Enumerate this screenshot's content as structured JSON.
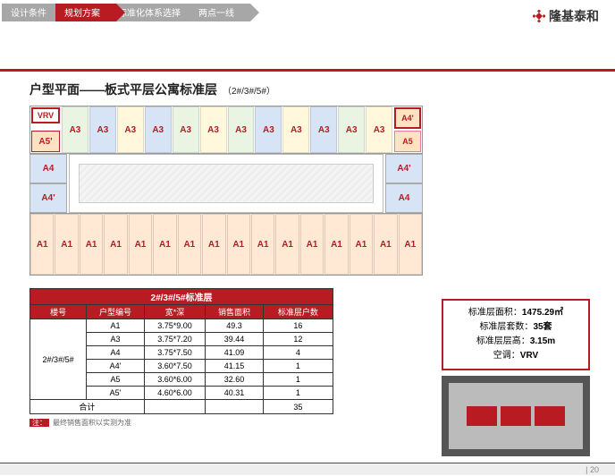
{
  "tabs": [
    "设计条件",
    "规划方案",
    "标准化体系选择",
    "两点一线"
  ],
  "active_tab_index": 1,
  "brand": "隆基泰和",
  "page_num": "20",
  "title_main": "户型平面——板式平层公寓标准层",
  "title_sub": "（2#/3#/5#）",
  "floorplan": {
    "vrv": "VRV",
    "a5l": "A5'",
    "top_units": [
      "A3",
      "A3",
      "A3",
      "A3",
      "A3",
      "A3",
      "A3",
      "A3",
      "A3",
      "A3",
      "A3",
      "A3"
    ],
    "top_colors": [
      "u-green",
      "u-blue",
      "u-yellow",
      "u-blue",
      "u-green",
      "u-yellow",
      "u-green",
      "u-blue",
      "u-yellow",
      "u-blue",
      "u-green",
      "u-yellow"
    ],
    "a4r": "A4'",
    "a5r": "A5",
    "mid_left": [
      "A4",
      "A4'"
    ],
    "mid_right": [
      "A4'",
      "A4"
    ],
    "bottom_units": [
      "A1",
      "A1",
      "A1",
      "A1",
      "A1",
      "A1",
      "A1",
      "A1",
      "A1",
      "A1",
      "A1",
      "A1",
      "A1",
      "A1",
      "A1",
      "A1"
    ]
  },
  "table": {
    "header_span": "2#/3#/5#标准层",
    "columns": [
      "楼号",
      "户型编号",
      "宽*深",
      "销售面积",
      "标准层户数"
    ],
    "building": "2#/3#/5#",
    "rows": [
      {
        "code": "A1",
        "dim": "3.75*9.00",
        "area": "49.3",
        "count": "16"
      },
      {
        "code": "A3",
        "dim": "3.75*7.20",
        "area": "39.44",
        "count": "12"
      },
      {
        "code": "A4",
        "dim": "3.75*7.50",
        "area": "41.09",
        "count": "4"
      },
      {
        "code": "A4'",
        "dim": "3.60*7.50",
        "area": "41.15",
        "count": "1"
      },
      {
        "code": "A5",
        "dim": "3.60*6.00",
        "area": "32.60",
        "count": "1"
      },
      {
        "code": "A5'",
        "dim": "4.60*6.00",
        "area": "40.31",
        "count": "1"
      }
    ],
    "total_label": "合计",
    "total": "35"
  },
  "note_label": "注：",
  "note": "最终销售面积以实测为准",
  "info": {
    "l1a": "标准层面积：",
    "l1b": "1475.29㎡",
    "l2a": "标准层套数：",
    "l2b": "35套",
    "l3a": "标准层层高：",
    "l3b": "3.15m",
    "l4a": "空调：",
    "l4b": "VRV"
  }
}
